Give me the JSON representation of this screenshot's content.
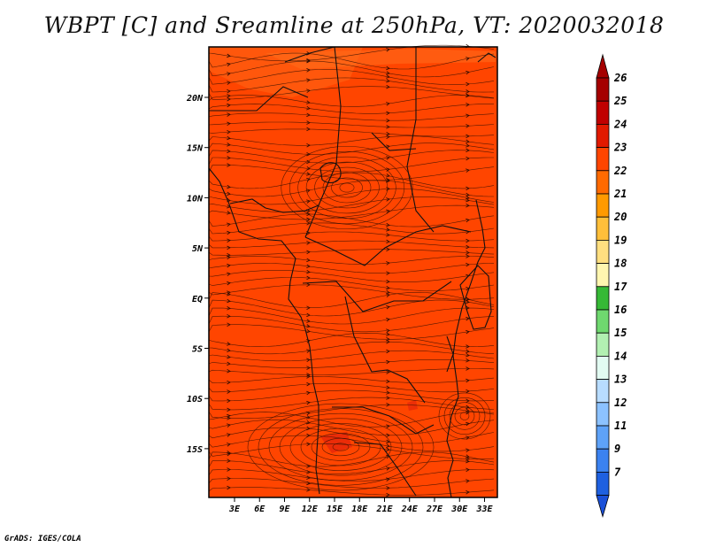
{
  "title": "WBPT [C] and Sreamline at 250hPa, VT: 2020032018",
  "credit": "GrADS: IGES/COLA",
  "map": {
    "field_color": "#ff4500",
    "latitude_labels": [
      "20N",
      "15N",
      "10N",
      "5N",
      "EQ",
      "5S",
      "10S",
      "15S"
    ],
    "longitude_labels": [
      "3E",
      "6E",
      "9E",
      "12E",
      "15E",
      "18E",
      "21E",
      "24E",
      "27E",
      "30E",
      "33E"
    ]
  },
  "colorbar": {
    "levels": [
      {
        "label": "26",
        "color": "#a50000"
      },
      {
        "label": "25",
        "color": "#c00000"
      },
      {
        "label": "24",
        "color": "#e11a00"
      },
      {
        "label": "23",
        "color": "#ff4500"
      },
      {
        "label": "22",
        "color": "#ff6a00"
      },
      {
        "label": "21",
        "color": "#ff9a00"
      },
      {
        "label": "20",
        "color": "#ffbf3a"
      },
      {
        "label": "19",
        "color": "#ffdf80"
      },
      {
        "label": "18",
        "color": "#fff6b0"
      },
      {
        "label": "17",
        "color": "#36b936"
      },
      {
        "label": "16",
        "color": "#6fd86f"
      },
      {
        "label": "15",
        "color": "#b2f0b2"
      },
      {
        "label": "14",
        "color": "#e2fbf2"
      },
      {
        "label": "13",
        "color": "#b8dcff"
      },
      {
        "label": "12",
        "color": "#8cc2ff"
      },
      {
        "label": "11",
        "color": "#5ea2f8"
      },
      {
        "label": "9",
        "color": "#3b82f0"
      },
      {
        "label": "7",
        "color": "#1e60e0"
      }
    ],
    "bottom_color": "#1a50d8"
  }
}
